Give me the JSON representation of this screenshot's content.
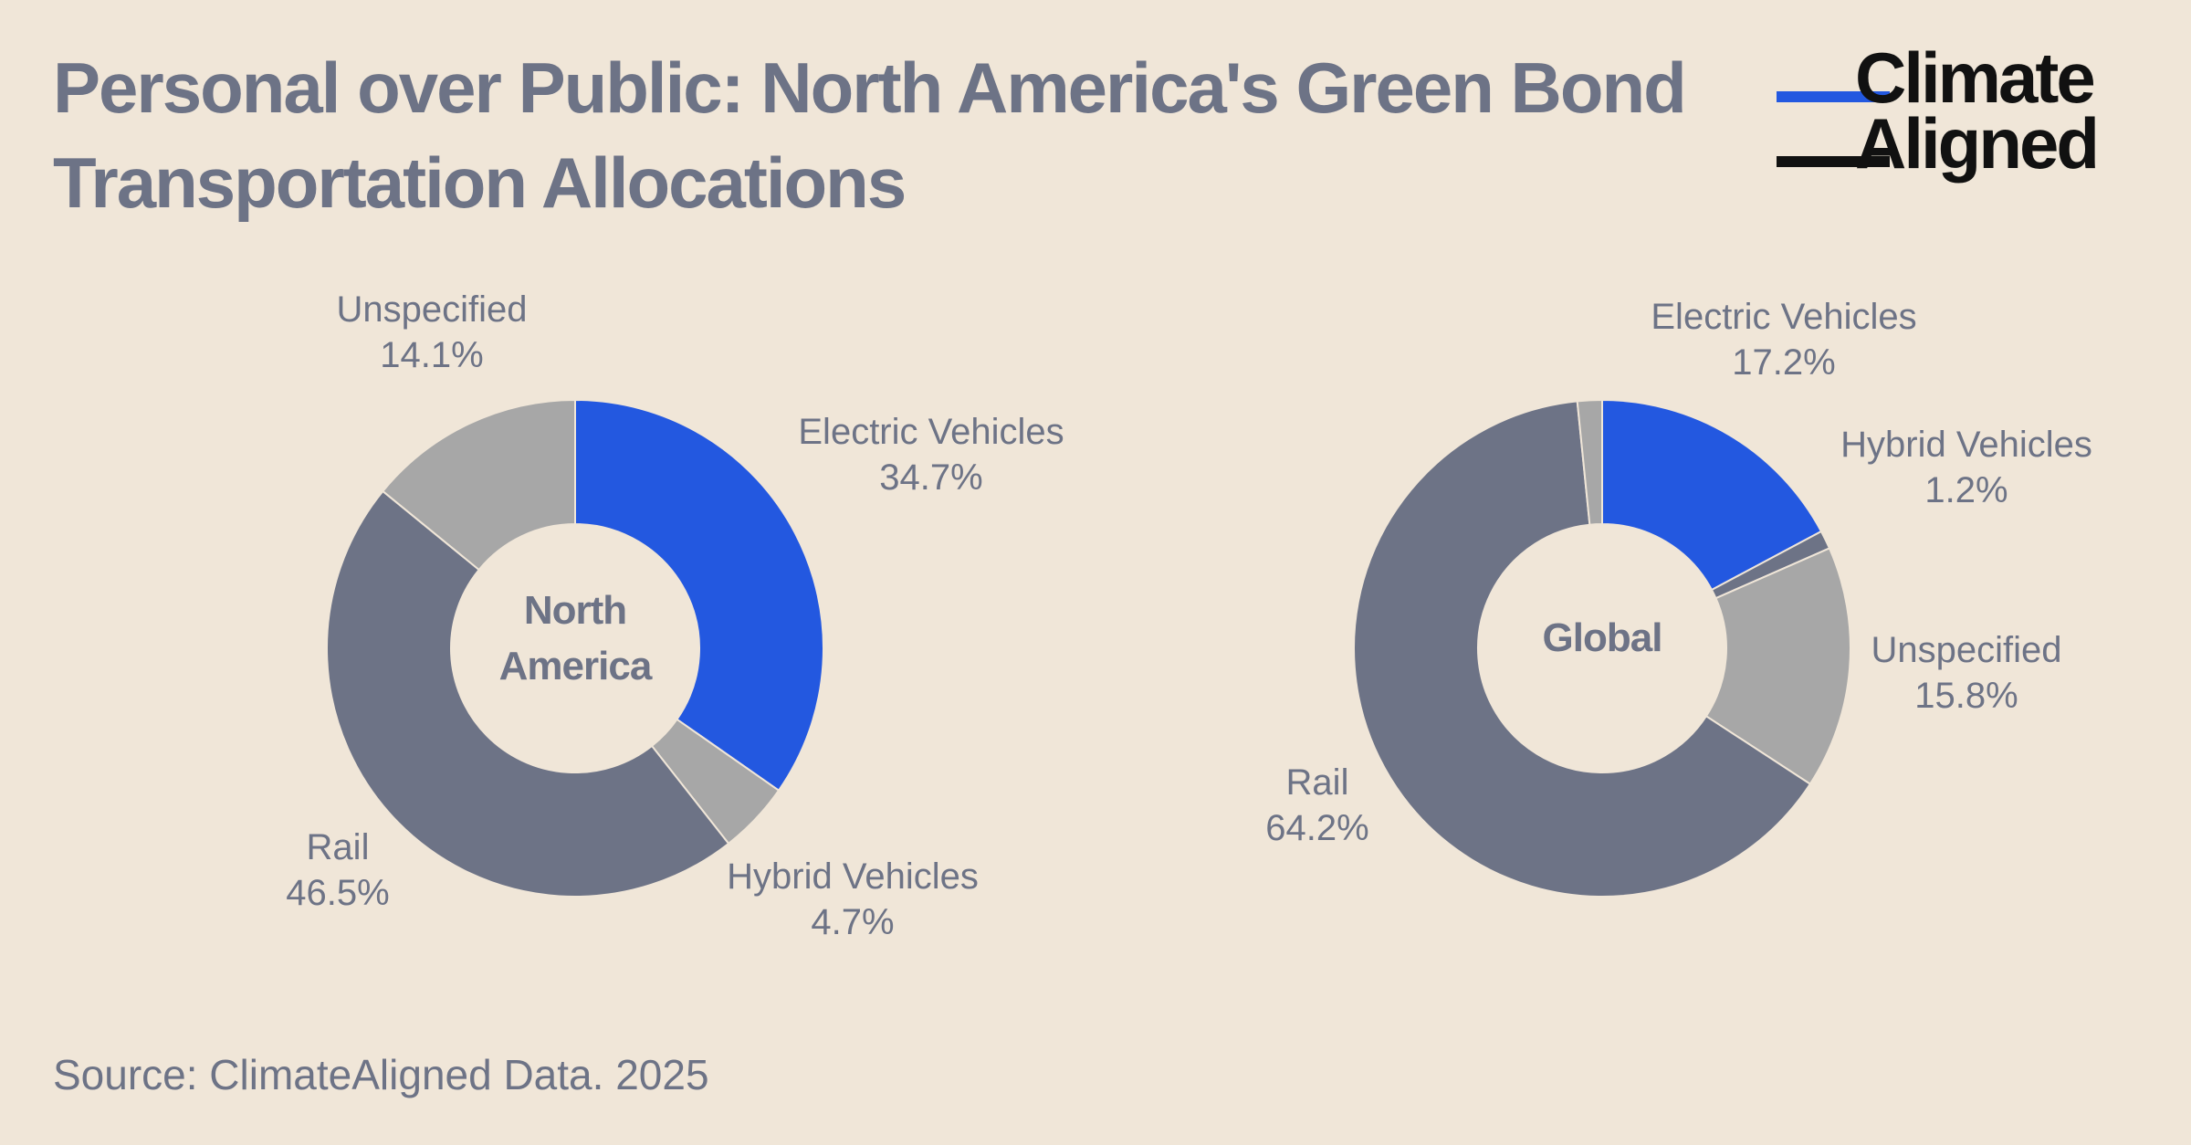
{
  "title": "Personal over Public: North America's Green Bond Transportation Allocations",
  "logo": {
    "line1": "Climate",
    "line2": "Aligned"
  },
  "source": "Source: ClimateAligned Data. 2025",
  "colors": {
    "background": "#f0e6d8",
    "electric_vehicles": "#2358e0",
    "hybrid_vehicles": "#a7a7a7",
    "hybrid_vehicles_global": "#6d7386",
    "unspecified": "#a7a7a7",
    "rail": "#6d7386",
    "label_text": "#6d7386"
  },
  "chart_data": [
    {
      "type": "pie",
      "variant": "donut",
      "title": "North America",
      "center_label": [
        "North",
        "America"
      ],
      "slices": [
        {
          "name": "Electric Vehicles",
          "value": 34.7,
          "label": "34.7%",
          "color": "#2358e0"
        },
        {
          "name": "Hybrid Vehicles",
          "value": 4.7,
          "label": "4.7%",
          "color": "#a7a7a7"
        },
        {
          "name": "Rail",
          "value": 46.5,
          "label": "46.5%",
          "color": "#6d7386"
        },
        {
          "name": "Unspecified",
          "value": 14.1,
          "label": "14.1%",
          "color": "#a7a7a7"
        }
      ]
    },
    {
      "type": "pie",
      "variant": "donut",
      "title": "Global",
      "center_label": [
        "Global"
      ],
      "slices": [
        {
          "name": "Electric Vehicles",
          "value": 17.2,
          "label": "17.2%",
          "color": "#2358e0"
        },
        {
          "name": "Hybrid Vehicles",
          "value": 1.2,
          "label": "1.2%",
          "color": "#6d7386"
        },
        {
          "name": "Unspecified",
          "value": 15.8,
          "label": "15.8%",
          "color": "#a7a7a7"
        },
        {
          "name": "Rail",
          "value": 64.2,
          "label": "64.2%",
          "color": "#6d7386"
        },
        {
          "name": "Unlabeled",
          "value": 1.6,
          "label": "",
          "color": "#a7a7a7"
        }
      ]
    }
  ]
}
